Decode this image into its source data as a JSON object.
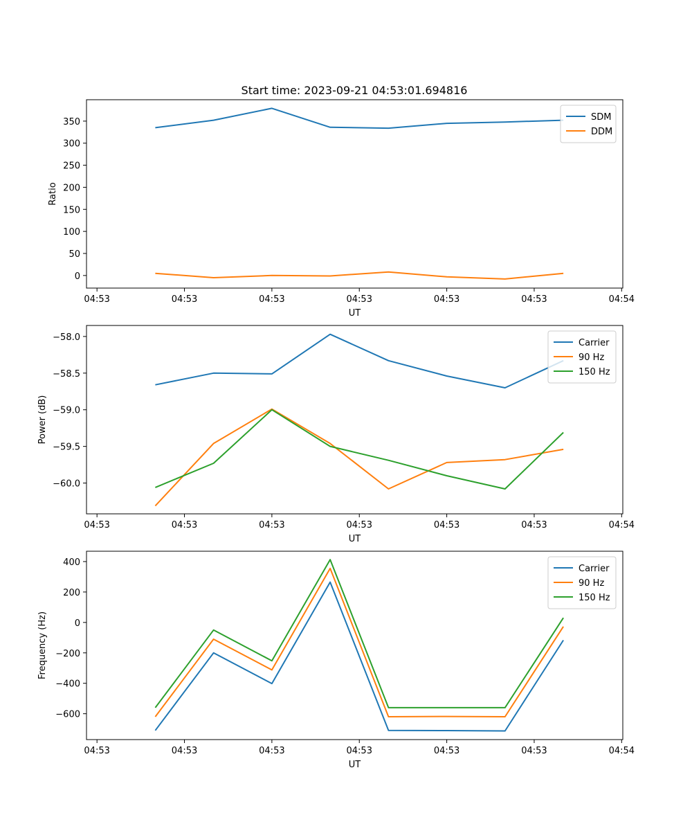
{
  "figure_title": "Start time: 2023-09-21 04:53:01.694816",
  "colors": {
    "blue": "#1f77b4",
    "orange": "#ff7f0e",
    "green": "#2ca02c"
  },
  "chart_data": [
    {
      "type": "line",
      "title": "Start time: 2023-09-21 04:53:01.694816",
      "xlabel": "UT",
      "ylabel": "Ratio",
      "x": [
        1,
        2,
        3,
        4,
        5,
        6,
        7,
        8
      ],
      "x_ticks": [
        0,
        1.5,
        3,
        4.5,
        6,
        7.5,
        9
      ],
      "x_tick_labels": [
        "04:53",
        "04:53",
        "04:53",
        "04:53",
        "04:53",
        "04:53",
        "04:54"
      ],
      "xlim": [
        -0.18,
        9.02
      ],
      "ylim": [
        -28.5,
        398.5
      ],
      "y_ticks": [
        0,
        50,
        100,
        150,
        200,
        250,
        300,
        350
      ],
      "y_tick_labels": [
        "0",
        "50",
        "100",
        "150",
        "200",
        "250",
        "300",
        "350"
      ],
      "legend": "top-right",
      "series": [
        {
          "name": "SDM",
          "color": "#1f77b4",
          "values": [
            335,
            352,
            379,
            336,
            334,
            345,
            348,
            352
          ]
        },
        {
          "name": "DDM",
          "color": "#ff7f0e",
          "values": [
            5,
            -5,
            0,
            -1,
            8,
            -3,
            -8,
            5
          ]
        }
      ]
    },
    {
      "type": "line",
      "xlabel": "UT",
      "ylabel": "Power (dB)",
      "x": [
        1,
        2,
        3,
        4,
        5,
        6,
        7,
        8
      ],
      "x_ticks": [
        0,
        1.5,
        3,
        4.5,
        6,
        7.5,
        9
      ],
      "x_tick_labels": [
        "04:53",
        "04:53",
        "04:53",
        "04:53",
        "04:53",
        "04:53",
        "04:54"
      ],
      "xlim": [
        -0.18,
        9.02
      ],
      "ylim": [
        -60.42,
        -57.85
      ],
      "y_ticks": [
        -58.0,
        -58.5,
        -59.0,
        -59.5,
        -60.0
      ],
      "y_tick_labels": [
        "−58.0",
        "−58.5",
        "−59.0",
        "−59.5",
        "−60.0"
      ],
      "legend": "top-right",
      "series": [
        {
          "name": "Carrier",
          "color": "#1f77b4",
          "values": [
            -58.66,
            -58.5,
            -58.51,
            -57.97,
            -58.33,
            -58.54,
            -58.7,
            -58.33
          ]
        },
        {
          "name": "90 Hz",
          "color": "#ff7f0e",
          "values": [
            -60.31,
            -59.46,
            -58.99,
            -59.46,
            -60.08,
            -59.72,
            -59.68,
            -59.54
          ]
        },
        {
          "name": "150 Hz",
          "color": "#2ca02c",
          "values": [
            -60.06,
            -59.73,
            -59.0,
            -59.5,
            -59.69,
            -59.9,
            -60.08,
            -59.31
          ]
        }
      ]
    },
    {
      "type": "line",
      "xlabel": "UT",
      "ylabel": "Frequency (Hz)",
      "x": [
        1,
        2,
        3,
        4,
        5,
        6,
        7,
        8
      ],
      "x_ticks": [
        0,
        1.5,
        3,
        4.5,
        6,
        7.5,
        9
      ],
      "x_tick_labels": [
        "04:53",
        "04:53",
        "04:53",
        "04:53",
        "04:53",
        "04:53",
        "04:54"
      ],
      "xlim": [
        -0.18,
        9.02
      ],
      "ylim": [
        -770,
        468
      ],
      "y_ticks": [
        400,
        200,
        0,
        -200,
        -400,
        -600
      ],
      "y_tick_labels": [
        "400",
        "200",
        "0",
        "−200",
        "−400",
        "−600"
      ],
      "legend": "top-right",
      "series": [
        {
          "name": "Carrier",
          "color": "#1f77b4",
          "values": [
            -710,
            -200,
            -402,
            265,
            -710,
            -711,
            -713,
            -117
          ]
        },
        {
          "name": "90 Hz",
          "color": "#ff7f0e",
          "values": [
            -620,
            -110,
            -312,
            355,
            -620,
            -618,
            -620,
            -27
          ]
        },
        {
          "name": "150 Hz",
          "color": "#2ca02c",
          "values": [
            -560,
            -50,
            -252,
            413,
            -560,
            -560,
            -560,
            30
          ]
        }
      ]
    }
  ]
}
